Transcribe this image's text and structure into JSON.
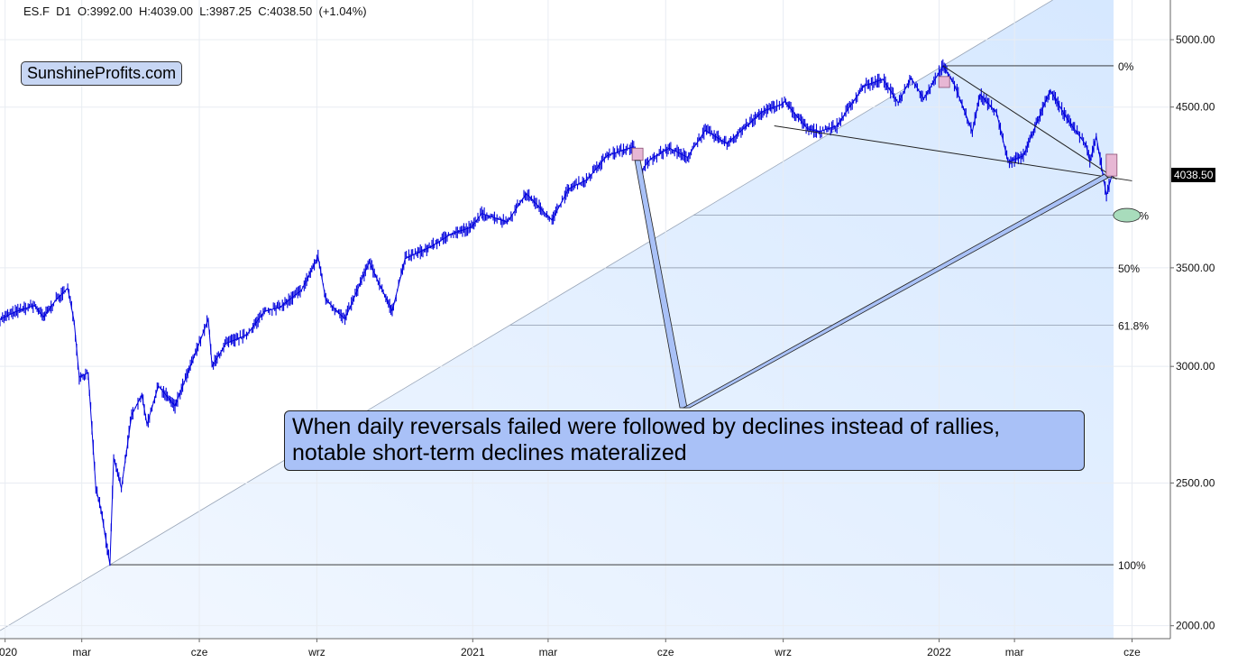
{
  "header": {
    "symbol": "ES.F",
    "interval": "D1",
    "open": "O:3992.00",
    "high": "H:4039.00",
    "low": "L:3987.25",
    "close": "C:4038.50",
    "change": "(+1.04%)"
  },
  "brand": {
    "label": "SunshineProfits.com"
  },
  "last_price": {
    "label": "4038.50",
    "value": 4038.5
  },
  "annotation": {
    "line1": "When daily reversals failed were followed by declines instead of rallies,",
    "line2": "notable short-term declines materalized"
  },
  "colors": {
    "price_line": "#0000dd",
    "fib_channel_fill": "#d6e8ff",
    "callout_fill": "#a9c1f7",
    "reversal_marker": "#e7b7d4",
    "target_ellipse": "#a8dcbc"
  },
  "chart_data": {
    "type": "line",
    "title": "",
    "xlabel": "",
    "ylabel": "",
    "y_scale": "log",
    "ylim": [
      1960,
      5320
    ],
    "xlim": [
      "2019-12-28",
      "2022-07-01"
    ],
    "grid": true,
    "y_ticks": [
      {
        "value": 2000,
        "label": "2000.00"
      },
      {
        "value": 2500,
        "label": "2500.00"
      },
      {
        "value": 3000,
        "label": "3000.00"
      },
      {
        "value": 3500,
        "label": "3500.00"
      },
      {
        "value": 4500,
        "label": "4500.00"
      },
      {
        "value": 5000,
        "label": "5000.00"
      }
    ],
    "x_ticks": [
      {
        "date": "2020-01-01",
        "label": "2020"
      },
      {
        "date": "2020-03-01",
        "label": "mar"
      },
      {
        "date": "2020-06-01",
        "label": "cze"
      },
      {
        "date": "2020-09-01",
        "label": "wrz"
      },
      {
        "date": "2021-01-01",
        "label": "2021"
      },
      {
        "date": "2021-03-01",
        "label": "mar"
      },
      {
        "date": "2021-06-01",
        "label": "cze"
      },
      {
        "date": "2021-09-01",
        "label": "wrz"
      },
      {
        "date": "2022-01-01",
        "label": "2022"
      },
      {
        "date": "2022-03-01",
        "label": "mar"
      },
      {
        "date": "2022-06-01",
        "label": "cze"
      }
    ],
    "series": [
      {
        "color": "#0000dd",
        "points": [
          [
            "2019-12-28",
            3230
          ],
          [
            "2020-01-10",
            3270
          ],
          [
            "2020-01-24",
            3300
          ],
          [
            "2020-01-31",
            3240
          ],
          [
            "2020-02-10",
            3330
          ],
          [
            "2020-02-19",
            3390
          ],
          [
            "2020-02-24",
            3220
          ],
          [
            "2020-02-28",
            2950
          ],
          [
            "2020-03-06",
            2970
          ],
          [
            "2020-03-12",
            2480
          ],
          [
            "2020-03-16",
            2400
          ],
          [
            "2020-03-23",
            2200
          ],
          [
            "2020-03-26",
            2600
          ],
          [
            "2020-04-01",
            2480
          ],
          [
            "2020-04-09",
            2780
          ],
          [
            "2020-04-17",
            2870
          ],
          [
            "2020-04-21",
            2740
          ],
          [
            "2020-04-30",
            2910
          ],
          [
            "2020-05-13",
            2820
          ],
          [
            "2020-05-27",
            3030
          ],
          [
            "2020-06-08",
            3230
          ],
          [
            "2020-06-11",
            3000
          ],
          [
            "2020-06-22",
            3110
          ],
          [
            "2020-07-08",
            3150
          ],
          [
            "2020-07-22",
            3270
          ],
          [
            "2020-08-03",
            3290
          ],
          [
            "2020-08-20",
            3380
          ],
          [
            "2020-09-02",
            3560
          ],
          [
            "2020-09-08",
            3330
          ],
          [
            "2020-09-23",
            3230
          ],
          [
            "2020-10-12",
            3530
          ],
          [
            "2020-10-30",
            3270
          ],
          [
            "2020-11-09",
            3550
          ],
          [
            "2020-11-30",
            3620
          ],
          [
            "2020-12-15",
            3690
          ],
          [
            "2020-12-31",
            3730
          ],
          [
            "2021-01-08",
            3810
          ],
          [
            "2021-01-28",
            3760
          ],
          [
            "2021-02-12",
            3930
          ],
          [
            "2021-03-04",
            3770
          ],
          [
            "2021-03-17",
            3960
          ],
          [
            "2021-04-01",
            4020
          ],
          [
            "2021-04-16",
            4170
          ],
          [
            "2021-05-07",
            4230
          ],
          [
            "2021-05-12",
            4060
          ],
          [
            "2021-05-20",
            4150
          ],
          [
            "2021-06-04",
            4220
          ],
          [
            "2021-06-18",
            4160
          ],
          [
            "2021-07-02",
            4340
          ],
          [
            "2021-07-19",
            4250
          ],
          [
            "2021-08-16",
            4470
          ],
          [
            "2021-08-31",
            4520
          ],
          [
            "2021-09-02",
            4540
          ],
          [
            "2021-09-20",
            4350
          ],
          [
            "2021-09-29",
            4330
          ],
          [
            "2021-10-13",
            4370
          ],
          [
            "2021-11-03",
            4650
          ],
          [
            "2021-11-18",
            4700
          ],
          [
            "2021-11-30",
            4530
          ],
          [
            "2021-12-10",
            4710
          ],
          [
            "2021-12-20",
            4560
          ],
          [
            "2022-01-04",
            4800
          ],
          [
            "2022-01-13",
            4660
          ],
          [
            "2022-01-27",
            4330
          ],
          [
            "2022-02-02",
            4590
          ],
          [
            "2022-02-15",
            4460
          ],
          [
            "2022-02-24",
            4130
          ],
          [
            "2022-03-08",
            4170
          ],
          [
            "2022-03-29",
            4620
          ],
          [
            "2022-04-11",
            4420
          ],
          [
            "2022-04-26",
            4240
          ],
          [
            "2022-04-29",
            4130
          ],
          [
            "2022-05-04",
            4300
          ],
          [
            "2022-05-12",
            3920
          ],
          [
            "2022-05-16",
            4038.5
          ]
        ]
      }
    ],
    "fibonacci_retracement": {
      "high": 4800,
      "low": 2200,
      "levels": [
        {
          "ratio": 0,
          "label": "0%",
          "price": 4800
        },
        {
          "ratio": 0.382,
          "label": "38.2%",
          "price": 3800
        },
        {
          "ratio": 0.5,
          "label": "50%",
          "price": 3500
        },
        {
          "ratio": 0.618,
          "label": "61.8%",
          "price": 3200
        },
        {
          "ratio": 1,
          "label": "100%",
          "price": 2200
        }
      ]
    },
    "trendlines": [
      {
        "from": [
          "2021-08-25",
          4370
        ],
        "to": [
          "2022-06-01",
          4010
        ]
      },
      {
        "from": [
          "2022-01-04",
          4800
        ],
        "to": [
          "2022-05-20",
          4020
        ]
      }
    ],
    "reversal_markers": [
      {
        "date": "2021-05-10",
        "high": 4220,
        "low": 4140
      },
      {
        "date": "2022-01-05",
        "high": 4720,
        "low": 4640
      },
      {
        "date": "2022-05-16",
        "high": 4180,
        "low": 4040
      }
    ],
    "target": {
      "date": "2022-05-28",
      "price": 3800
    }
  }
}
